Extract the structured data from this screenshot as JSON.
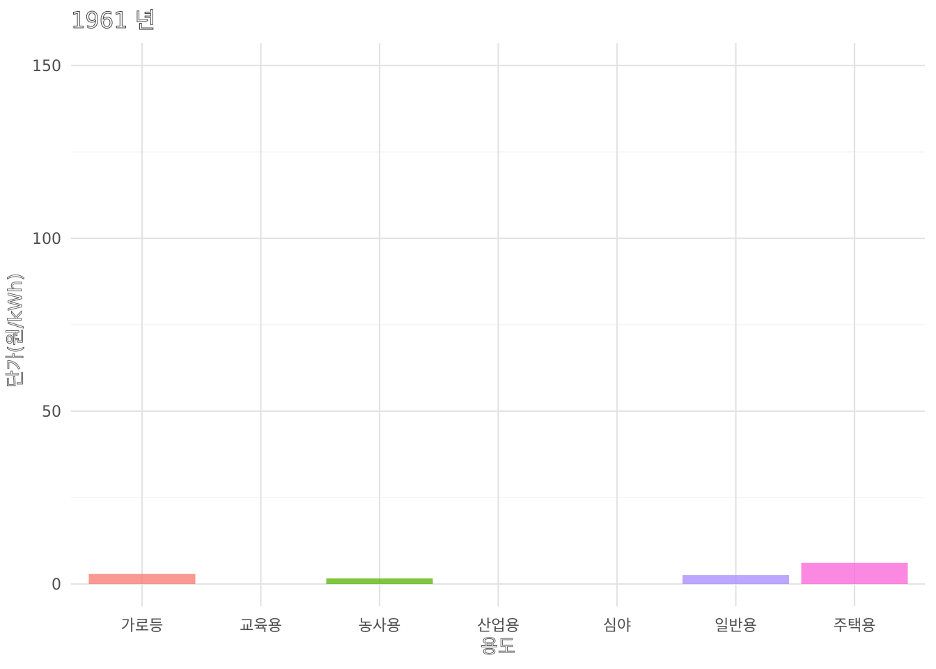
{
  "chart_data": {
    "type": "bar",
    "title": "1961 년",
    "xlabel": "용도",
    "ylabel": "단가(원/kWh)",
    "categories": [
      "가로등",
      "교육용",
      "농사용",
      "산업용",
      "심야",
      "일반용",
      "주택용"
    ],
    "values": [
      2.9,
      0,
      1.6,
      0,
      0,
      2.6,
      6.1
    ],
    "colors": [
      "#f8766d",
      "#c49a00",
      "#53b400",
      "#00c094",
      "#00b6eb",
      "#a58aff",
      "#fb61d7"
    ],
    "ylim": [
      -6,
      157
    ],
    "yticks": [
      0,
      50,
      100,
      150
    ],
    "yticks_minor": [
      25,
      75,
      125
    ],
    "grid": true,
    "legend": "none"
  }
}
